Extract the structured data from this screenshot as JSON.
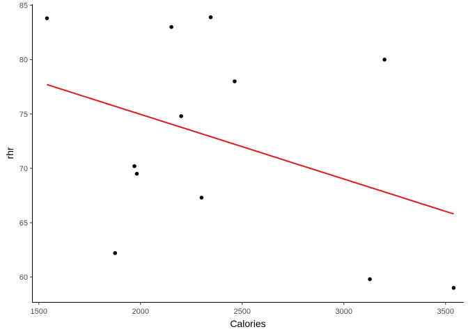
{
  "chart_data": {
    "type": "scatter",
    "title": "",
    "xlabel": "Calories",
    "ylabel": "rhr",
    "xlim": [
      1470,
      3590
    ],
    "ylim": [
      57.7,
      85.1
    ],
    "x_ticks": [
      1500,
      2000,
      2500,
      3000,
      3500
    ],
    "y_ticks": [
      60,
      65,
      70,
      75,
      80,
      85
    ],
    "grid": false,
    "legend": "none",
    "points": [
      {
        "x": 1540,
        "y": 83.8
      },
      {
        "x": 1875,
        "y": 62.2
      },
      {
        "x": 1970,
        "y": 70.2
      },
      {
        "x": 1982,
        "y": 69.5
      },
      {
        "x": 2152,
        "y": 83.0
      },
      {
        "x": 2200,
        "y": 74.8
      },
      {
        "x": 2300,
        "y": 67.3
      },
      {
        "x": 2345,
        "y": 83.9
      },
      {
        "x": 2463,
        "y": 78.0
      },
      {
        "x": 3128,
        "y": 59.8
      },
      {
        "x": 3200,
        "y": 80.0
      },
      {
        "x": 3540,
        "y": 59.0
      }
    ],
    "trend_line": {
      "x": [
        1540,
        3540
      ],
      "y": [
        77.7,
        65.8
      ]
    },
    "colors": {
      "points": "#000000",
      "trend_line": "#e31a1c",
      "axis": "#000000",
      "tick_label": "#4d4d4d"
    }
  }
}
